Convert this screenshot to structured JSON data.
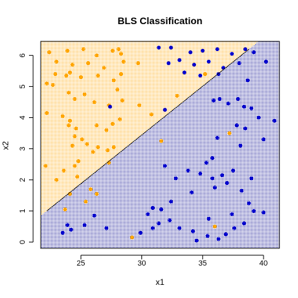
{
  "chart_data": {
    "type": "scatter",
    "title": "BLS Classification",
    "xlabel": "x1",
    "ylabel": "x2",
    "xlim": [
      21.7,
      41.3
    ],
    "ylim": [
      -0.2,
      6.45
    ],
    "x_ticks": [
      25,
      30,
      35,
      40
    ],
    "y_ticks": [
      0,
      1,
      2,
      3,
      4,
      5,
      6
    ],
    "decision_boundary": {
      "x": [
        22.2,
        38.8
      ],
      "y": [
        1.0,
        6.2
      ]
    },
    "colors": {
      "class_a": "#ffa500",
      "class_b": "#0000cd",
      "boundary": "#000000",
      "frame": "#000000"
    },
    "series": [
      {
        "color": "#ffa500",
        "points": [
          [
            22.4,
            6.1
          ],
          [
            23.9,
            6.15
          ],
          [
            25.2,
            6.2
          ],
          [
            26.3,
            6.0
          ],
          [
            27.6,
            6.15
          ],
          [
            28.1,
            6.2
          ],
          [
            28.3,
            6.05
          ],
          [
            23.0,
            5.8
          ],
          [
            24.3,
            5.7
          ],
          [
            25.6,
            5.75
          ],
          [
            26.9,
            5.6
          ],
          [
            28.5,
            5.8
          ],
          [
            29.7,
            5.75
          ],
          [
            22.9,
            5.4
          ],
          [
            23.8,
            5.35
          ],
          [
            24.1,
            5.45
          ],
          [
            25.0,
            5.3
          ],
          [
            26.4,
            5.35
          ],
          [
            27.7,
            5.2
          ],
          [
            28.3,
            5.4
          ],
          [
            22.2,
            5.1
          ],
          [
            22.7,
            5.05
          ],
          [
            24.0,
            4.8
          ],
          [
            24.5,
            4.6
          ],
          [
            25.3,
            4.75
          ],
          [
            26.1,
            4.5
          ],
          [
            27.3,
            4.4
          ],
          [
            28.0,
            4.9
          ],
          [
            28.4,
            4.55
          ],
          [
            29.8,
            4.4
          ],
          [
            22.2,
            4.15
          ],
          [
            23.5,
            4.05
          ],
          [
            24.1,
            3.9
          ],
          [
            24.0,
            3.75
          ],
          [
            24.6,
            3.65
          ],
          [
            26.3,
            3.75
          ],
          [
            27.1,
            3.6
          ],
          [
            27.6,
            3.8
          ],
          [
            28.2,
            3.95
          ],
          [
            24.5,
            3.4
          ],
          [
            25.5,
            3.15
          ],
          [
            26.4,
            3.05
          ],
          [
            27.2,
            2.95
          ],
          [
            27.7,
            3.05
          ],
          [
            25.1,
            3.3
          ],
          [
            26.0,
            2.9
          ],
          [
            24.8,
            2.6
          ],
          [
            24.5,
            2.45
          ],
          [
            22.1,
            2.45
          ],
          [
            23.0,
            2.0
          ],
          [
            23.6,
            2.3
          ],
          [
            24.7,
            2.1
          ],
          [
            25.8,
            1.7
          ],
          [
            26.3,
            1.55
          ],
          [
            27.3,
            2.55
          ],
          [
            25.4,
            1.3
          ],
          [
            24.1,
            1.55
          ],
          [
            29.2,
            0.15
          ],
          [
            36.0,
            0.5
          ],
          [
            37.2,
            3.5
          ],
          [
            35.2,
            5.4
          ],
          [
            32.9,
            4.7
          ],
          [
            30.8,
            4.1
          ],
          [
            31.6,
            3.25
          ],
          [
            23.7,
            1.05
          ],
          [
            24.3,
            3.1
          ]
        ]
      },
      {
        "color": "#0000cd",
        "points": [
          [
            31.4,
            6.25
          ],
          [
            32.4,
            6.25
          ],
          [
            34.0,
            6.1
          ],
          [
            35.0,
            6.15
          ],
          [
            36.2,
            6.2
          ],
          [
            37.4,
            6.05
          ],
          [
            38.5,
            6.2
          ],
          [
            39.2,
            6.1
          ],
          [
            32.2,
            5.75
          ],
          [
            33.1,
            5.85
          ],
          [
            34.3,
            5.7
          ],
          [
            35.5,
            5.8
          ],
          [
            36.7,
            5.6
          ],
          [
            38.0,
            5.75
          ],
          [
            40.2,
            5.8
          ],
          [
            33.5,
            5.45
          ],
          [
            34.8,
            5.35
          ],
          [
            36.3,
            5.4
          ],
          [
            38.7,
            5.2
          ],
          [
            35.9,
            4.55
          ],
          [
            36.4,
            4.6
          ],
          [
            37.1,
            4.45
          ],
          [
            38.4,
            4.35
          ],
          [
            39.0,
            4.3
          ],
          [
            37.9,
            4.6
          ],
          [
            39.6,
            4.0
          ],
          [
            40.9,
            3.9
          ],
          [
            37.8,
            3.75
          ],
          [
            38.5,
            3.65
          ],
          [
            40.0,
            3.3
          ],
          [
            38.1,
            3.1
          ],
          [
            36.2,
            3.35
          ],
          [
            35.3,
            2.55
          ],
          [
            35.8,
            2.7
          ],
          [
            33.8,
            2.3
          ],
          [
            31.9,
            2.45
          ],
          [
            32.8,
            2.05
          ],
          [
            34.8,
            2.2
          ],
          [
            35.8,
            2.05
          ],
          [
            36.6,
            2.15
          ],
          [
            37.5,
            2.3
          ],
          [
            39.0,
            2.05
          ],
          [
            36.0,
            1.75
          ],
          [
            37.0,
            1.9
          ],
          [
            38.2,
            1.65
          ],
          [
            34.1,
            1.6
          ],
          [
            32.4,
            1.3
          ],
          [
            31.6,
            1.05
          ],
          [
            30.5,
            0.9
          ],
          [
            31.4,
            0.6
          ],
          [
            32.3,
            0.7
          ],
          [
            33.1,
            0.45
          ],
          [
            34.2,
            0.35
          ],
          [
            34.5,
            0.05
          ],
          [
            35.4,
            0.2
          ],
          [
            36.3,
            0.1
          ],
          [
            36.9,
            0.25
          ],
          [
            37.6,
            0.45
          ],
          [
            38.4,
            0.6
          ],
          [
            39.2,
            1.0
          ],
          [
            40.0,
            0.95
          ],
          [
            38.8,
            1.25
          ],
          [
            37.4,
            0.9
          ],
          [
            35.5,
            0.75
          ],
          [
            30.9,
            0.45
          ],
          [
            29.9,
            0.3
          ],
          [
            27.1,
            0.45
          ],
          [
            26.1,
            0.85
          ],
          [
            25.3,
            0.55
          ],
          [
            24.2,
            0.4
          ],
          [
            23.5,
            0.3
          ],
          [
            23.9,
            0.55
          ],
          [
            27.4,
            4.35
          ],
          [
            31.9,
            4.25
          ],
          [
            30.9,
            1.1
          ]
        ]
      }
    ]
  }
}
